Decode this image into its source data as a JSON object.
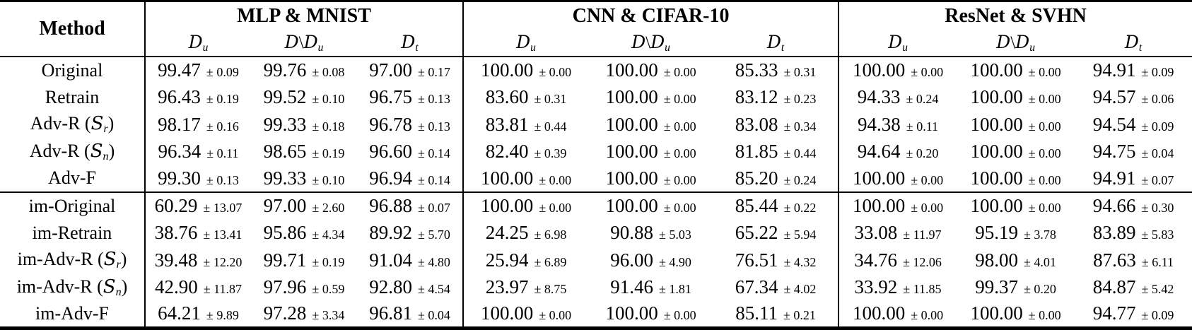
{
  "table": {
    "method_header": "Method",
    "pm_sign": "±",
    "groups": [
      {
        "title": "MLP & MNIST"
      },
      {
        "title": "CNN & CIFAR-10"
      },
      {
        "title": "ResNet & SVHN"
      }
    ],
    "col_headers": [
      {
        "parts": [
          {
            "t": "D",
            "style": "cal"
          },
          {
            "t": "u",
            "style": "sub"
          }
        ]
      },
      {
        "parts": [
          {
            "t": "D",
            "style": "cal"
          },
          {
            "t": "\\",
            "style": "normal"
          },
          {
            "t": "D",
            "style": "cal"
          },
          {
            "t": "u",
            "style": "sub"
          }
        ]
      },
      {
        "parts": [
          {
            "t": "D",
            "style": "cal"
          },
          {
            "t": "t",
            "style": "sub"
          }
        ]
      }
    ],
    "rows": [
      {
        "section_start": false,
        "method": [
          {
            "t": "Original",
            "style": "normal"
          }
        ],
        "cells": [
          [
            "99.47",
            "0.09"
          ],
          [
            "99.76",
            "0.08"
          ],
          [
            "97.00",
            "0.17"
          ],
          [
            "100.00",
            "0.00"
          ],
          [
            "100.00",
            "0.00"
          ],
          [
            "85.33",
            "0.31"
          ],
          [
            "100.00",
            "0.00"
          ],
          [
            "100.00",
            "0.00"
          ],
          [
            "94.91",
            "0.09"
          ]
        ]
      },
      {
        "section_start": false,
        "method": [
          {
            "t": "Retrain",
            "style": "normal"
          }
        ],
        "cells": [
          [
            "96.43",
            "0.19"
          ],
          [
            "99.52",
            "0.10"
          ],
          [
            "96.75",
            "0.13"
          ],
          [
            "83.60",
            "0.31"
          ],
          [
            "100.00",
            "0.00"
          ],
          [
            "83.12",
            "0.23"
          ],
          [
            "94.33",
            "0.24"
          ],
          [
            "100.00",
            "0.00"
          ],
          [
            "94.57",
            "0.06"
          ]
        ]
      },
      {
        "section_start": false,
        "method": [
          {
            "t": "Adv-R (",
            "style": "normal"
          },
          {
            "t": "S",
            "style": "cal"
          },
          {
            "t": "r",
            "style": "sub"
          },
          {
            "t": ")",
            "style": "normal"
          }
        ],
        "cells": [
          [
            "98.17",
            "0.16"
          ],
          [
            "99.33",
            "0.18"
          ],
          [
            "96.78",
            "0.13"
          ],
          [
            "83.81",
            "0.44"
          ],
          [
            "100.00",
            "0.00"
          ],
          [
            "83.08",
            "0.34"
          ],
          [
            "94.38",
            "0.11"
          ],
          [
            "100.00",
            "0.00"
          ],
          [
            "94.54",
            "0.09"
          ]
        ]
      },
      {
        "section_start": false,
        "method": [
          {
            "t": "Adv-R (",
            "style": "normal"
          },
          {
            "t": "S",
            "style": "cal"
          },
          {
            "t": "n",
            "style": "sub"
          },
          {
            "t": ")",
            "style": "normal"
          }
        ],
        "cells": [
          [
            "96.34",
            "0.11"
          ],
          [
            "98.65",
            "0.19"
          ],
          [
            "96.60",
            "0.14"
          ],
          [
            "82.40",
            "0.39"
          ],
          [
            "100.00",
            "0.00"
          ],
          [
            "81.85",
            "0.44"
          ],
          [
            "94.64",
            "0.20"
          ],
          [
            "100.00",
            "0.00"
          ],
          [
            "94.75",
            "0.04"
          ]
        ]
      },
      {
        "section_start": false,
        "method": [
          {
            "t": "Adv-F",
            "style": "normal"
          }
        ],
        "cells": [
          [
            "99.30",
            "0.13"
          ],
          [
            "99.33",
            "0.10"
          ],
          [
            "96.94",
            "0.14"
          ],
          [
            "100.00",
            "0.00"
          ],
          [
            "100.00",
            "0.00"
          ],
          [
            "85.20",
            "0.24"
          ],
          [
            "100.00",
            "0.00"
          ],
          [
            "100.00",
            "0.00"
          ],
          [
            "94.91",
            "0.07"
          ]
        ]
      },
      {
        "section_start": true,
        "method": [
          {
            "t": "im-Original",
            "style": "normal"
          }
        ],
        "cells": [
          [
            "60.29",
            "13.07"
          ],
          [
            "97.00",
            "2.60"
          ],
          [
            "96.88",
            "0.07"
          ],
          [
            "100.00",
            "0.00"
          ],
          [
            "100.00",
            "0.00"
          ],
          [
            "85.44",
            "0.22"
          ],
          [
            "100.00",
            "0.00"
          ],
          [
            "100.00",
            "0.00"
          ],
          [
            "94.66",
            "0.30"
          ]
        ]
      },
      {
        "section_start": false,
        "method": [
          {
            "t": "im-Retrain",
            "style": "normal"
          }
        ],
        "cells": [
          [
            "38.76",
            "13.41"
          ],
          [
            "95.86",
            "4.34"
          ],
          [
            "89.92",
            "5.70"
          ],
          [
            "24.25",
            "6.98"
          ],
          [
            "90.88",
            "5.03"
          ],
          [
            "65.22",
            "5.94"
          ],
          [
            "33.08",
            "11.97"
          ],
          [
            "95.19",
            "3.78"
          ],
          [
            "83.89",
            "5.83"
          ]
        ]
      },
      {
        "section_start": false,
        "method": [
          {
            "t": "im-Adv-R (",
            "style": "normal"
          },
          {
            "t": "S",
            "style": "cal"
          },
          {
            "t": "r",
            "style": "sub"
          },
          {
            "t": ")",
            "style": "normal"
          }
        ],
        "cells": [
          [
            "39.48",
            "12.20"
          ],
          [
            "99.71",
            "0.19"
          ],
          [
            "91.04",
            "4.80"
          ],
          [
            "25.94",
            "6.89"
          ],
          [
            "96.00",
            "4.90"
          ],
          [
            "76.51",
            "4.32"
          ],
          [
            "34.76",
            "12.06"
          ],
          [
            "98.00",
            "4.01"
          ],
          [
            "87.63",
            "6.11"
          ]
        ]
      },
      {
        "section_start": false,
        "method": [
          {
            "t": "im-Adv-R (",
            "style": "normal"
          },
          {
            "t": "S",
            "style": "cal"
          },
          {
            "t": "n",
            "style": "sub"
          },
          {
            "t": ")",
            "style": "normal"
          }
        ],
        "cells": [
          [
            "42.90",
            "11.87"
          ],
          [
            "97.96",
            "0.59"
          ],
          [
            "92.80",
            "4.54"
          ],
          [
            "23.97",
            "8.75"
          ],
          [
            "91.46",
            "1.81"
          ],
          [
            "67.34",
            "4.02"
          ],
          [
            "33.92",
            "11.85"
          ],
          [
            "99.37",
            "0.20"
          ],
          [
            "84.87",
            "5.42"
          ]
        ]
      },
      {
        "section_start": false,
        "method": [
          {
            "t": "im-Adv-F",
            "style": "normal"
          }
        ],
        "cells": [
          [
            "64.21",
            "9.89"
          ],
          [
            "97.28",
            "3.34"
          ],
          [
            "96.81",
            "0.04"
          ],
          [
            "100.00",
            "0.00"
          ],
          [
            "100.00",
            "0.00"
          ],
          [
            "85.11",
            "0.21"
          ],
          [
            "100.00",
            "0.00"
          ],
          [
            "100.00",
            "0.00"
          ],
          [
            "94.77",
            "0.09"
          ]
        ]
      }
    ]
  }
}
